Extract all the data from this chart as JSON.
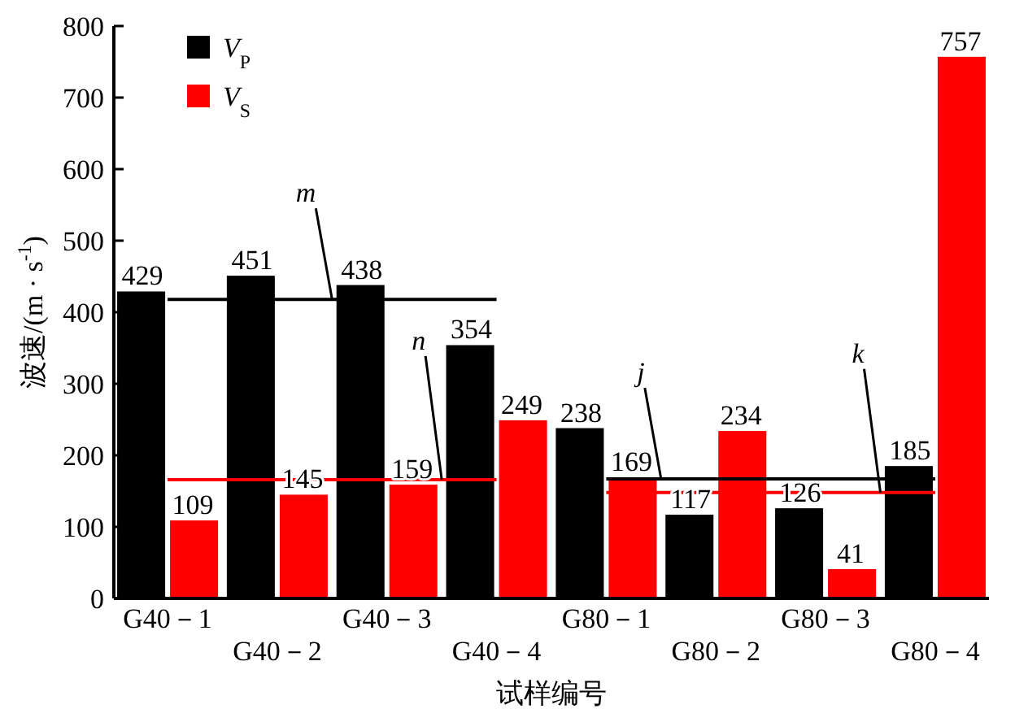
{
  "chart_data": {
    "type": "bar",
    "xlabel": "试样编号",
    "ylabel": "波速/(m · s$^{-1}$)",
    "categories": [
      "G40－1",
      "G40－2",
      "G40－3",
      "G40－4",
      "G80－1",
      "G80－2",
      "G80－3",
      "G80－4"
    ],
    "series": [
      {
        "name": "V$_{P}$",
        "color": "#000000",
        "values": [
          429,
          451,
          438,
          354,
          238,
          117,
          126,
          185
        ],
        "value_labels": [
          "429",
          "451",
          "438",
          "354",
          "238",
          "117",
          "126",
          "185"
        ]
      },
      {
        "name": "V$_{S}$",
        "color": "#ff0000",
        "values": [
          109,
          145,
          159,
          249,
          169,
          234,
          41,
          757
        ],
        "value_labels": [
          "109",
          "145",
          "159",
          "249",
          "169",
          "234",
          "41",
          "757"
        ]
      },
      {
        "name": "m",
        "type": "line",
        "color": "#000000",
        "values": [
          418,
          418,
          418,
          418,
          null,
          null,
          null,
          null
        ]
      },
      {
        "name": "n",
        "type": "line",
        "color": "#ff0000",
        "values": [
          166,
          166,
          166,
          166,
          null,
          null,
          null,
          null
        ]
      },
      {
        "name": "j",
        "type": "line",
        "color": "#000000",
        "values": [
          null,
          null,
          null,
          null,
          167,
          167,
          167,
          167
        ]
      },
      {
        "name": "k",
        "type": "line",
        "color": "#ff0000",
        "values": [
          null,
          null,
          null,
          null,
          148,
          148,
          148,
          148
        ]
      }
    ],
    "ylim": [
      0,
      800
    ],
    "yticks": [
      0,
      100,
      200,
      300,
      400,
      500,
      600,
      700,
      800
    ],
    "legend": "top left",
    "grid": false
  }
}
